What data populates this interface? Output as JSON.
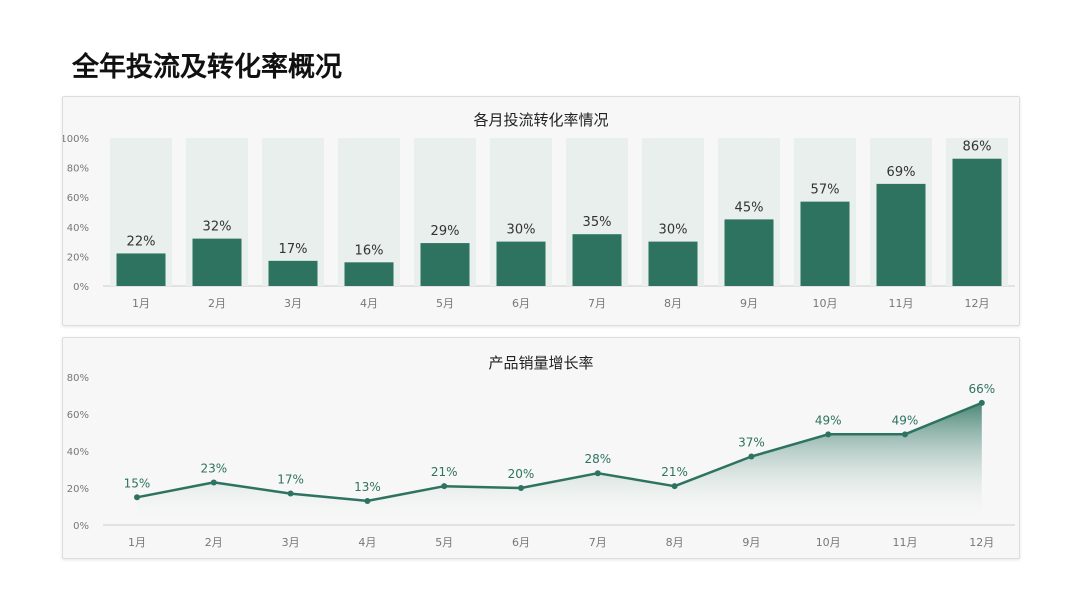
{
  "page": {
    "title": "全年投流及转化率概况"
  },
  "chart_data": [
    {
      "type": "bar",
      "title": "各月投流转化率情况",
      "categories": [
        "1月",
        "2月",
        "3月",
        "4月",
        "5月",
        "6月",
        "7月",
        "8月",
        "9月",
        "10月",
        "11月",
        "12月"
      ],
      "values": [
        22,
        32,
        17,
        16,
        29,
        30,
        35,
        30,
        45,
        57,
        69,
        86
      ],
      "background_value": 100,
      "value_format": "{v}%",
      "ylim": [
        0,
        100
      ],
      "yticks": [
        0,
        20,
        40,
        60,
        80,
        100
      ],
      "ytick_labels": [
        "0%",
        "20%",
        "40%",
        "60%",
        "80%",
        "100%"
      ],
      "xlabel": "",
      "ylabel": "",
      "grid": false,
      "legend": "none",
      "colors": {
        "bar": "#2e7360",
        "background_bar": "#e8efec",
        "label": "#333333",
        "axis_text": "#777777"
      }
    },
    {
      "type": "area",
      "title": "产品销量增长率",
      "categories": [
        "1月",
        "2月",
        "3月",
        "4月",
        "5月",
        "6月",
        "7月",
        "8月",
        "9月",
        "10月",
        "11月",
        "12月"
      ],
      "values": [
        15,
        23,
        17,
        13,
        21,
        20,
        28,
        21,
        37,
        49,
        49,
        66
      ],
      "value_format": "{v}%",
      "ylim": [
        0,
        80
      ],
      "yticks": [
        0,
        20,
        40,
        60,
        80
      ],
      "ytick_labels": [
        "0%",
        "20%",
        "40%",
        "60%",
        "80%"
      ],
      "xlabel": "",
      "ylabel": "",
      "grid": false,
      "legend": "none",
      "colors": {
        "line": "#2e7360",
        "area_top": "#2e7360",
        "label": "#2e7360",
        "axis_text": "#777777"
      }
    }
  ]
}
